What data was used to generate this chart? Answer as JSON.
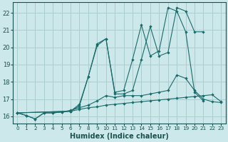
{
  "xlabel": "Humidex (Indice chaleur)",
  "bg_color": "#cce8ea",
  "grid_color": "#aacdd0",
  "line_color": "#1a6b6b",
  "xlim": [
    -0.5,
    23.5
  ],
  "ylim": [
    15.6,
    22.6
  ],
  "xticks": [
    0,
    1,
    2,
    3,
    4,
    5,
    6,
    7,
    8,
    9,
    10,
    11,
    12,
    13,
    14,
    15,
    16,
    17,
    18,
    19,
    20,
    21,
    22,
    23
  ],
  "yticks": [
    16,
    17,
    18,
    19,
    20,
    21,
    22
  ],
  "line1_x": [
    0,
    1,
    2,
    3,
    4,
    5,
    6,
    7,
    8,
    9,
    10,
    11,
    12,
    13,
    14,
    15,
    16,
    17,
    18,
    19,
    20,
    21,
    22,
    23
  ],
  "line1_y": [
    16.2,
    16.05,
    15.85,
    16.2,
    16.2,
    16.25,
    16.3,
    16.4,
    16.5,
    16.55,
    16.65,
    16.7,
    16.75,
    16.8,
    16.85,
    16.9,
    16.95,
    17.0,
    17.05,
    17.1,
    17.15,
    17.2,
    17.25,
    16.85
  ],
  "line2_x": [
    0,
    1,
    2,
    3,
    4,
    5,
    6,
    7,
    8,
    9,
    10,
    11,
    12,
    13,
    14,
    15,
    16,
    17,
    18,
    19,
    20,
    21,
    22,
    23
  ],
  "line2_y": [
    16.2,
    16.05,
    15.85,
    16.2,
    16.2,
    16.25,
    16.35,
    16.5,
    16.65,
    16.9,
    17.2,
    17.1,
    17.2,
    17.2,
    17.2,
    17.3,
    17.4,
    17.5,
    18.4,
    18.2,
    17.5,
    17.0,
    16.85,
    16.8
  ],
  "line3_x": [
    0,
    6,
    7,
    8,
    9,
    10,
    11,
    12,
    13,
    14,
    15,
    16,
    17,
    18,
    19,
    20,
    21
  ],
  "line3_y": [
    16.2,
    16.3,
    16.6,
    18.3,
    20.1,
    20.5,
    17.3,
    17.3,
    17.5,
    19.3,
    21.2,
    19.5,
    19.7,
    22.3,
    22.1,
    20.9,
    20.9
  ],
  "line4_x": [
    0,
    6,
    7,
    8,
    9,
    10,
    11,
    12,
    13,
    14,
    15,
    16,
    17,
    18,
    19,
    20,
    21
  ],
  "line4_y": [
    16.2,
    16.3,
    16.7,
    18.3,
    20.2,
    20.5,
    17.4,
    17.5,
    19.3,
    21.3,
    19.5,
    19.8,
    22.3,
    22.1,
    20.9,
    17.4,
    16.9
  ]
}
